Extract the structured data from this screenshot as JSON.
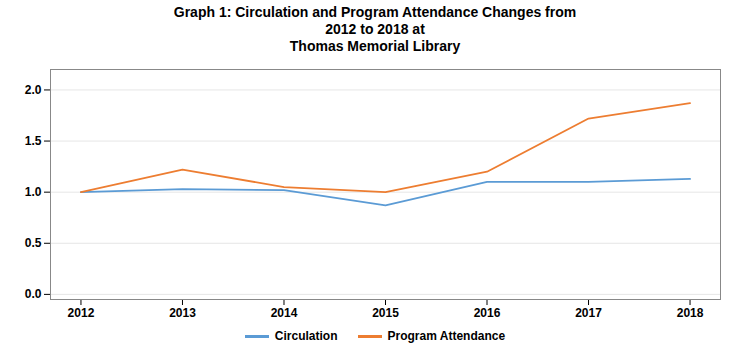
{
  "chart_data": {
    "type": "line",
    "title": "Graph 1: Circulation and Program Attendance Changes from\n2012 to 2018 at\nThomas Memorial Library",
    "x": [
      2012,
      2013,
      2014,
      2015,
      2016,
      2017,
      2018
    ],
    "series": [
      {
        "name": "Circulation",
        "color": "#5b9bd5",
        "values": [
          1.0,
          1.03,
          1.02,
          0.87,
          1.1,
          1.1,
          1.13
        ]
      },
      {
        "name": "Program Attendance",
        "color": "#ed7d31",
        "values": [
          1.0,
          1.22,
          1.05,
          1.0,
          1.2,
          1.72,
          1.87
        ]
      }
    ],
    "xlim": [
      2011.7,
      2018.3
    ],
    "xticks": [
      2012,
      2013,
      2014,
      2015,
      2016,
      2017,
      2018
    ],
    "ylim": [
      -0.05,
      2.2
    ],
    "yticks": [
      {
        "value": 0.0,
        "label": "0.0"
      },
      0.5,
      {
        "value": 1.0,
        "label": "1.0"
      },
      1.5,
      {
        "value": 2.0,
        "label": "2.0"
      }
    ],
    "grid": true,
    "legend": "bottom"
  }
}
